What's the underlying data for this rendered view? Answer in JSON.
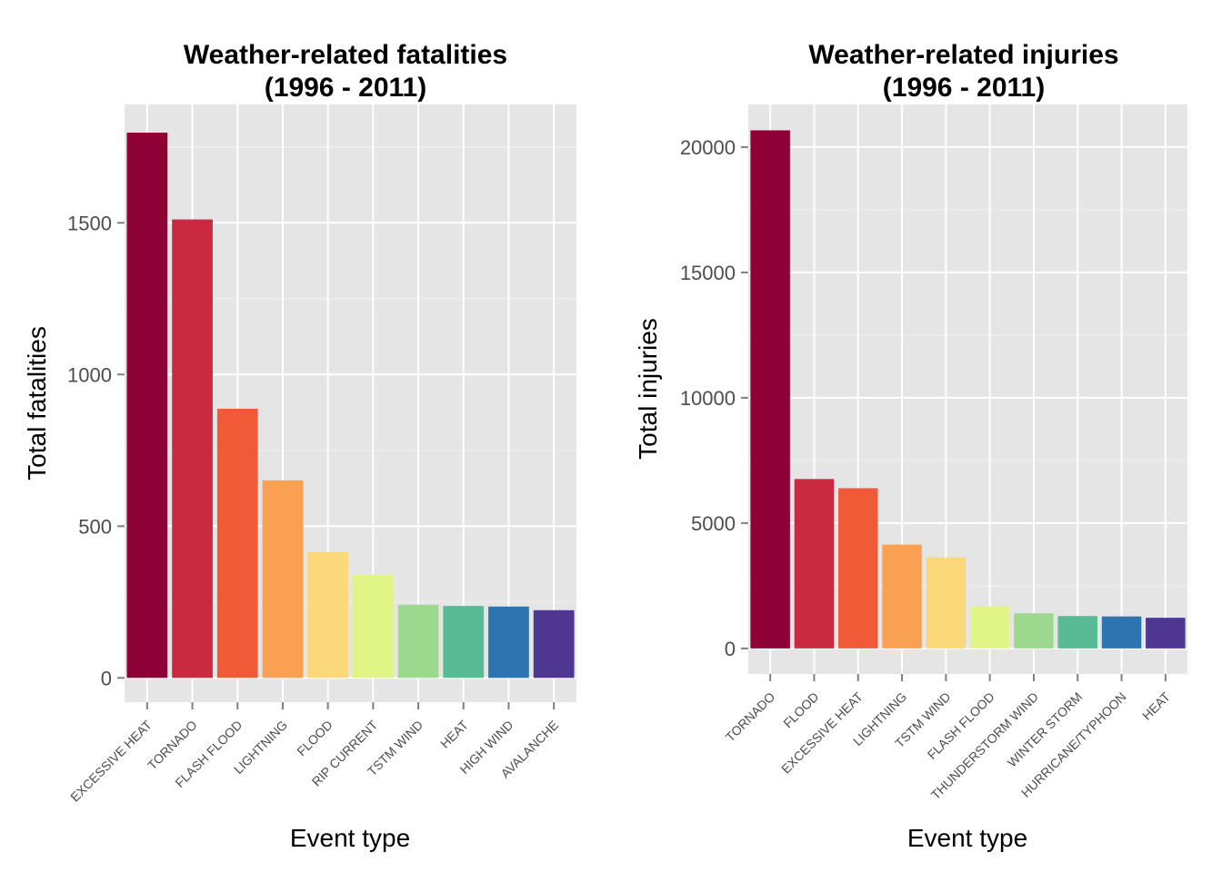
{
  "chart_data": [
    {
      "type": "bar",
      "title": [
        "Weather-related fatalities",
        "(1996 - 2011)"
      ],
      "xlabel": "Event type",
      "ylabel": "Total fatalities",
      "categories": [
        "EXCESSIVE HEAT",
        "TORNADO",
        "FLASH FLOOD",
        "LIGHTNING",
        "FLOOD",
        "RIP CURRENT",
        "TSTM WIND",
        "HEAT",
        "HIGH WIND",
        "AVALANCHE"
      ],
      "values": [
        1797,
        1511,
        887,
        651,
        414,
        340,
        241,
        237,
        235,
        223
      ],
      "colors": [
        "#8e0136",
        "#ca2a3f",
        "#f05a37",
        "#f9a052",
        "#fbd97a",
        "#e1f586",
        "#9cd98e",
        "#58bb95",
        "#2d75b1",
        "#4d3790"
      ],
      "yticks": [
        0,
        500,
        1000,
        1500
      ],
      "ylim": [
        -80,
        1890
      ],
      "grid": true
    },
    {
      "type": "bar",
      "title": [
        "Weather-related injuries",
        "(1996 - 2011)"
      ],
      "xlabel": "Event type",
      "ylabel": "Total injuries",
      "categories": [
        "TORNADO",
        "FLOOD",
        "EXCESSIVE HEAT",
        "LIGHTNING",
        "TSTM WIND",
        "FLASH FLOOD",
        "THUNDERSTORM WIND",
        "WINTER STORM",
        "HURRICANE/TYPHOON",
        "HEAT"
      ],
      "values": [
        20667,
        6758,
        6391,
        4141,
        3629,
        1674,
        1400,
        1292,
        1275,
        1222
      ],
      "colors": [
        "#8e0136",
        "#ca2a3f",
        "#f05a37",
        "#f9a052",
        "#fbd97a",
        "#e1f586",
        "#9cd98e",
        "#58bb95",
        "#2d75b1",
        "#4d3790"
      ],
      "yticks": [
        0,
        5000,
        10000,
        15000,
        20000
      ],
      "ylim": [
        -1020,
        21700
      ],
      "grid": true
    }
  ]
}
